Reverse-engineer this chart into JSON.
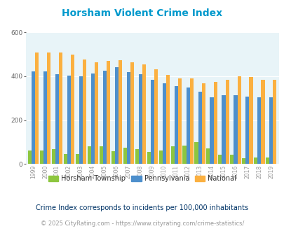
{
  "title": "Horsham Violent Crime Index",
  "years": [
    1999,
    2000,
    2001,
    2002,
    2003,
    2004,
    2005,
    2006,
    2007,
    2008,
    2009,
    2010,
    2011,
    2012,
    2013,
    2014,
    2015,
    2016,
    2017,
    2018,
    2019
  ],
  "horsham": [
    62,
    62,
    68,
    45,
    47,
    80,
    80,
    58,
    75,
    68,
    55,
    60,
    80,
    85,
    100,
    70,
    42,
    42,
    25,
    30,
    30
  ],
  "pennsylvania": [
    422,
    422,
    410,
    402,
    400,
    412,
    425,
    440,
    418,
    410,
    385,
    368,
    356,
    348,
    328,
    305,
    315,
    315,
    308,
    305,
    305
  ],
  "national": [
    507,
    507,
    507,
    498,
    475,
    463,
    470,
    472,
    465,
    455,
    430,
    405,
    390,
    390,
    368,
    375,
    383,
    400,
    395,
    383,
    383
  ],
  "colors": {
    "horsham": "#8dc63f",
    "pennsylvania": "#4d8fcc",
    "national": "#fbb040",
    "background": "#e8f4f8"
  },
  "ylim": [
    0,
    600
  ],
  "yticks": [
    0,
    200,
    400,
    600
  ],
  "subtitle": "Crime Index corresponds to incidents per 100,000 inhabitants",
  "footer": "© 2025 CityRating.com - https://www.cityrating.com/crime-statistics/",
  "title_color": "#0099cc",
  "subtitle_color": "#003366",
  "footer_color": "#999999"
}
